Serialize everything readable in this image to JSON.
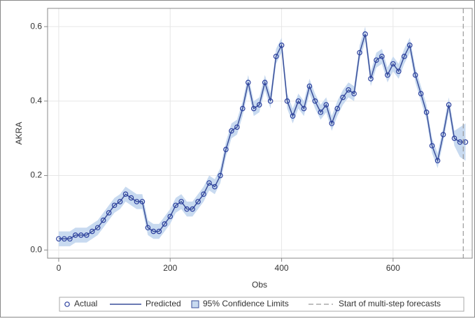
{
  "chart_data": {
    "type": "forecast",
    "x_label": "Obs",
    "y_label": "AKRA",
    "x": [
      0,
      10,
      20,
      30,
      40,
      50,
      60,
      70,
      80,
      90,
      100,
      110,
      120,
      130,
      140,
      150,
      160,
      170,
      180,
      190,
      200,
      210,
      220,
      230,
      240,
      250,
      260,
      270,
      280,
      290,
      300,
      310,
      320,
      330,
      340,
      350,
      360,
      370,
      380,
      390,
      400,
      410,
      420,
      430,
      440,
      450,
      460,
      470,
      480,
      490,
      500,
      510,
      520,
      530,
      540,
      550,
      560,
      570,
      580,
      590,
      600,
      610,
      620,
      630,
      640,
      650,
      660,
      670,
      680,
      690,
      700,
      710,
      720,
      730
    ],
    "series": [
      {
        "name": "Actual",
        "color": "#2b3f9e",
        "values": [
          0.03,
          0.03,
          0.03,
          0.04,
          0.04,
          0.04,
          0.05,
          0.06,
          0.08,
          0.1,
          0.12,
          0.13,
          0.15,
          0.14,
          0.13,
          0.13,
          0.06,
          0.05,
          0.05,
          0.07,
          0.09,
          0.12,
          0.13,
          0.11,
          0.11,
          0.13,
          0.15,
          0.18,
          0.17,
          0.2,
          0.27,
          0.32,
          0.33,
          0.38,
          0.45,
          0.38,
          0.39,
          0.45,
          0.4,
          0.52,
          0.55,
          0.4,
          0.36,
          0.4,
          0.38,
          0.44,
          0.4,
          0.37,
          0.39,
          0.34,
          0.38,
          0.41,
          0.43,
          0.42,
          0.53,
          0.58,
          0.46,
          0.51,
          0.52,
          0.47,
          0.5,
          0.48,
          0.52,
          0.55,
          0.47,
          0.42,
          0.37,
          0.28,
          0.24,
          0.31,
          0.39,
          0.3,
          0.29,
          0.29
        ]
      },
      {
        "name": "Predicted",
        "color": "#3a4f9a",
        "values": [
          0.03,
          0.03,
          0.03,
          0.04,
          0.04,
          0.04,
          0.05,
          0.06,
          0.08,
          0.1,
          0.12,
          0.13,
          0.15,
          0.14,
          0.13,
          0.13,
          0.06,
          0.05,
          0.05,
          0.07,
          0.09,
          0.12,
          0.13,
          0.11,
          0.11,
          0.13,
          0.15,
          0.18,
          0.17,
          0.2,
          0.27,
          0.32,
          0.33,
          0.38,
          0.45,
          0.38,
          0.39,
          0.45,
          0.4,
          0.52,
          0.55,
          0.4,
          0.36,
          0.4,
          0.38,
          0.44,
          0.4,
          0.37,
          0.39,
          0.34,
          0.38,
          0.41,
          0.43,
          0.42,
          0.53,
          0.58,
          0.46,
          0.51,
          0.52,
          0.47,
          0.5,
          0.48,
          0.52,
          0.55,
          0.47,
          0.42,
          0.37,
          0.28,
          0.24,
          0.31,
          0.39,
          0.3,
          0.29,
          0.29
        ]
      }
    ],
    "band": {
      "name": "95% Confidence Limits",
      "color": "#c8daf0",
      "lower": [
        0.01,
        0.01,
        0.01,
        0.02,
        0.02,
        0.02,
        0.03,
        0.04,
        0.06,
        0.08,
        0.1,
        0.11,
        0.13,
        0.12,
        0.11,
        0.11,
        0.04,
        0.03,
        0.03,
        0.05,
        0.07,
        0.1,
        0.11,
        0.09,
        0.09,
        0.11,
        0.13,
        0.16,
        0.15,
        0.18,
        0.25,
        0.3,
        0.31,
        0.36,
        0.43,
        0.36,
        0.37,
        0.43,
        0.38,
        0.5,
        0.53,
        0.38,
        0.34,
        0.38,
        0.36,
        0.42,
        0.38,
        0.35,
        0.37,
        0.32,
        0.36,
        0.39,
        0.41,
        0.4,
        0.51,
        0.56,
        0.44,
        0.49,
        0.5,
        0.45,
        0.48,
        0.46,
        0.5,
        0.53,
        0.45,
        0.4,
        0.35,
        0.26,
        0.22,
        0.29,
        0.37,
        0.28,
        0.25,
        0.24
      ],
      "upper": [
        0.05,
        0.05,
        0.05,
        0.06,
        0.06,
        0.06,
        0.07,
        0.08,
        0.1,
        0.12,
        0.14,
        0.15,
        0.17,
        0.16,
        0.15,
        0.15,
        0.08,
        0.07,
        0.07,
        0.09,
        0.11,
        0.14,
        0.15,
        0.13,
        0.13,
        0.15,
        0.17,
        0.2,
        0.19,
        0.22,
        0.29,
        0.34,
        0.35,
        0.4,
        0.47,
        0.4,
        0.41,
        0.47,
        0.42,
        0.54,
        0.57,
        0.42,
        0.38,
        0.42,
        0.4,
        0.46,
        0.42,
        0.39,
        0.41,
        0.36,
        0.4,
        0.43,
        0.45,
        0.44,
        0.55,
        0.6,
        0.48,
        0.53,
        0.54,
        0.49,
        0.52,
        0.5,
        0.54,
        0.57,
        0.49,
        0.44,
        0.39,
        0.3,
        0.26,
        0.33,
        0.41,
        0.32,
        0.33,
        0.34
      ]
    },
    "forecast_start": {
      "name": "Start of multi-step forecasts",
      "x": 726,
      "color": "#999999"
    },
    "xlim": [
      -20,
      742
    ],
    "ylim": [
      -0.022,
      0.649
    ],
    "xticks": [
      0,
      200,
      400,
      600
    ],
    "yticks": [
      {
        "value": 0,
        "label": "0.0"
      },
      0.2,
      0.4,
      0.6
    ],
    "grid": true
  }
}
